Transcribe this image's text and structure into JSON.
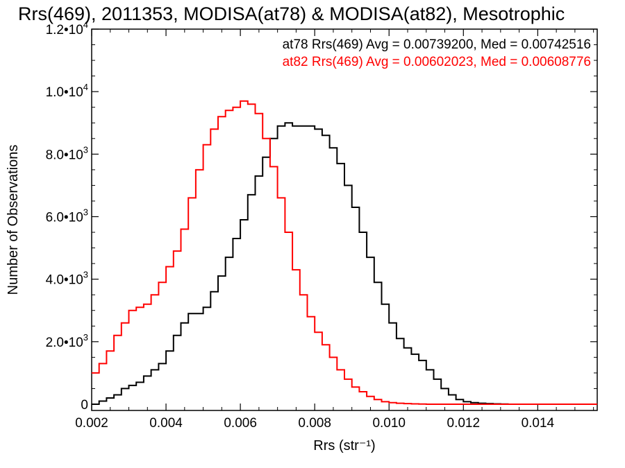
{
  "chart_data": {
    "type": "histogram-line",
    "title": "Rrs(469), 2011353, MODISA(at78) & MODISA(at82), Mesotrophic",
    "xlabel": "Rrs (str⁻¹)",
    "ylabel": "Number of Observations",
    "xlim": [
      0.002,
      0.0156
    ],
    "ylim": [
      -200,
      12000
    ],
    "x_ticks": [
      0.002,
      0.004,
      0.006,
      0.008,
      0.01,
      0.012,
      0.014
    ],
    "x_tick_labels": [
      "0.002",
      "0.004",
      "0.006",
      "0.008",
      "0.010",
      "0.012",
      "0.014"
    ],
    "y_ticks": [
      0,
      2000,
      4000,
      6000,
      8000,
      10000,
      12000
    ],
    "y_tick_labels": [
      {
        "mantissa": "0",
        "exponent": ""
      },
      {
        "mantissa": "2.0•10",
        "exponent": "3"
      },
      {
        "mantissa": "4.0•10",
        "exponent": "3"
      },
      {
        "mantissa": "6.0•10",
        "exponent": "3"
      },
      {
        "mantissa": "8.0•10",
        "exponent": "3"
      },
      {
        "mantissa": "1.0•10",
        "exponent": "4"
      },
      {
        "mantissa": "1.2•10",
        "exponent": "4"
      }
    ],
    "legend": [
      {
        "text": "at78 Rrs(469) Avg = 0.00739200, Med = 0.00742516",
        "color": "#000000"
      },
      {
        "text": "at82 Rrs(469) Avg = 0.00602023, Med = 0.00608776",
        "color": "#ff0000"
      }
    ],
    "series": [
      {
        "color": "#000000",
        "x": [
          0.002,
          0.0022,
          0.0024,
          0.0026,
          0.0028,
          0.003,
          0.0032,
          0.0034,
          0.0036,
          0.0038,
          0.004,
          0.0042,
          0.0044,
          0.0046,
          0.0048,
          0.005,
          0.0052,
          0.0054,
          0.0056,
          0.0058,
          0.006,
          0.0062,
          0.0064,
          0.0066,
          0.0068,
          0.007,
          0.0072,
          0.0074,
          0.0076,
          0.0078,
          0.008,
          0.0082,
          0.0084,
          0.0086,
          0.0088,
          0.009,
          0.0092,
          0.0094,
          0.0096,
          0.0098,
          0.01,
          0.0102,
          0.0104,
          0.0106,
          0.0108,
          0.011,
          0.0112,
          0.0114,
          0.0116,
          0.0118,
          0.012,
          0.0122,
          0.0124,
          0.0126,
          0.0128,
          0.013,
          0.0132,
          0.0134,
          0.0136,
          0.0138,
          0.014,
          0.0142,
          0.0144,
          0.0146,
          0.0148,
          0.015,
          0.0152,
          0.0154,
          0.0156
        ],
        "y": [
          0,
          100,
          200,
          300,
          500,
          600,
          700,
          900,
          1100,
          1300,
          1700,
          2200,
          2600,
          2900,
          2900,
          3100,
          3600,
          4100,
          4700,
          5300,
          5900,
          6700,
          7300,
          7900,
          8500,
          8900,
          9000,
          8900,
          8900,
          8900,
          8800,
          8600,
          8200,
          7700,
          7000,
          6300,
          5500,
          4700,
          3900,
          3200,
          2600,
          2100,
          1800,
          1600,
          1400,
          1100,
          800,
          500,
          300,
          150,
          80,
          50,
          30,
          20,
          10,
          5,
          0,
          0,
          0,
          0,
          0,
          0,
          0,
          0,
          0,
          0,
          0,
          0,
          0
        ]
      },
      {
        "color": "#ff0000",
        "x": [
          0.002,
          0.0022,
          0.0024,
          0.0026,
          0.0028,
          0.003,
          0.0032,
          0.0034,
          0.0036,
          0.0038,
          0.004,
          0.0042,
          0.0044,
          0.0046,
          0.0048,
          0.005,
          0.0052,
          0.0054,
          0.0056,
          0.0058,
          0.006,
          0.0062,
          0.0064,
          0.0066,
          0.0068,
          0.007,
          0.0072,
          0.0074,
          0.0076,
          0.0078,
          0.008,
          0.0082,
          0.0084,
          0.0086,
          0.0088,
          0.009,
          0.0092,
          0.0094,
          0.0096,
          0.0098,
          0.01,
          0.0102,
          0.0104,
          0.0106,
          0.0108,
          0.011,
          0.0112,
          0.0114,
          0.0116,
          0.0118,
          0.012,
          0.0122,
          0.0124,
          0.0126,
          0.0128,
          0.013,
          0.0132,
          0.0134,
          0.0136,
          0.0138,
          0.014,
          0.0142,
          0.0144,
          0.0146,
          0.0148,
          0.015,
          0.0152,
          0.0154,
          0.0156
        ],
        "y": [
          1000,
          1300,
          1700,
          2200,
          2600,
          3000,
          3100,
          3200,
          3500,
          3900,
          4400,
          4900,
          5600,
          6600,
          7500,
          8300,
          8800,
          9200,
          9400,
          9500,
          9700,
          9600,
          9300,
          8500,
          7600,
          6600,
          5500,
          4300,
          3500,
          2800,
          2300,
          1900,
          1500,
          1100,
          800,
          550,
          400,
          250,
          150,
          80,
          50,
          30,
          20,
          10,
          5,
          0,
          0,
          0,
          0,
          0,
          0,
          0,
          0,
          0,
          0,
          0,
          0,
          0,
          0,
          0,
          0,
          0,
          0,
          0,
          0,
          0,
          0,
          0,
          0
        ]
      }
    ]
  }
}
